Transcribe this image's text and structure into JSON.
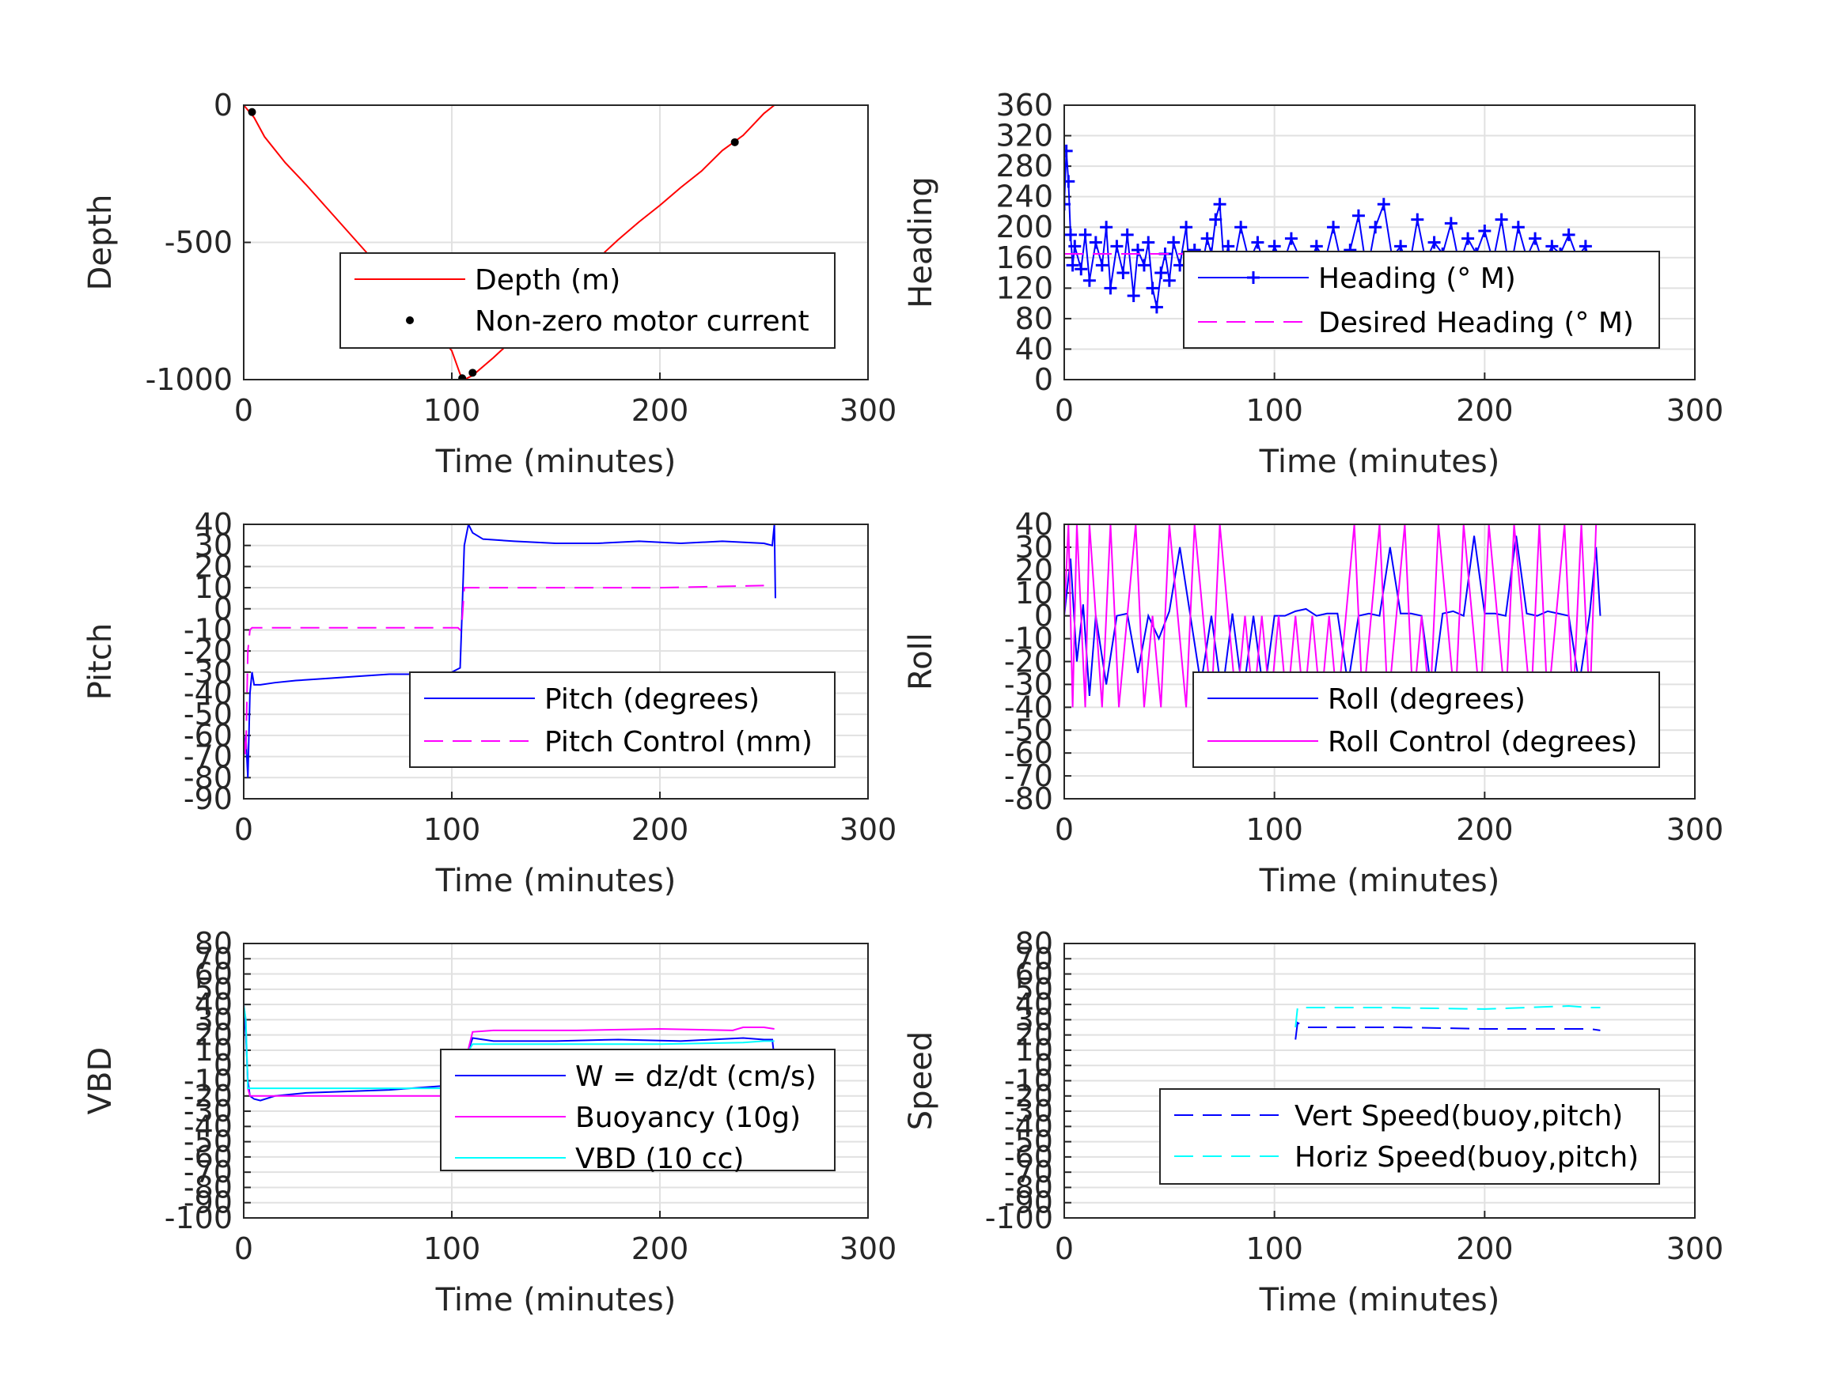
{
  "chart_data": [
    {
      "id": "depth",
      "type": "line",
      "xlabel": "Time (minutes)",
      "ylabel": "Depth",
      "xlim": [
        0,
        300
      ],
      "ylim": [
        -1000,
        0
      ],
      "xticks": [
        0,
        100,
        200,
        300
      ],
      "yticks": [
        0,
        -500,
        -1000
      ],
      "ytick_labels": [
        "0",
        "-500",
        "-1000"
      ],
      "grid": true,
      "legend_position": "lower-right",
      "series": [
        {
          "name": "Depth (m)",
          "style": "line",
          "color": "#ff0000",
          "x": [
            0,
            5,
            10,
            20,
            30,
            40,
            50,
            60,
            70,
            80,
            90,
            100,
            104,
            106,
            110,
            120,
            130,
            140,
            150,
            160,
            170,
            180,
            190,
            200,
            210,
            220,
            230,
            240,
            250,
            255
          ],
          "y": [
            0,
            -45,
            -115,
            -210,
            -290,
            -375,
            -460,
            -545,
            -630,
            -710,
            -800,
            -895,
            -980,
            -1000,
            -985,
            -920,
            -850,
            -775,
            -700,
            -630,
            -560,
            -490,
            -425,
            -365,
            -300,
            -240,
            -165,
            -110,
            -30,
            0
          ]
        },
        {
          "name": "Non-zero motor current",
          "style": "points",
          "color": "#000000",
          "x": [
            4,
            77,
            105,
            110,
            236
          ],
          "y": [
            -25,
            -780,
            -995,
            -975,
            -135
          ]
        }
      ]
    },
    {
      "id": "heading",
      "type": "line",
      "xlabel": "Time (minutes)",
      "ylabel": "Heading",
      "xlim": [
        0,
        300
      ],
      "ylim": [
        0,
        360
      ],
      "xticks": [
        0,
        100,
        200,
        300
      ],
      "yticks": [
        0,
        40,
        80,
        120,
        160,
        200,
        240,
        280,
        320,
        360
      ],
      "grid": true,
      "legend_position": "lower-right",
      "series": [
        {
          "name": "Heading (° M)",
          "style": "plus",
          "color": "#0000ff",
          "x": [
            0,
            1,
            2,
            3,
            4,
            5,
            8,
            10,
            12,
            15,
            18,
            20,
            22,
            25,
            28,
            30,
            33,
            35,
            38,
            40,
            42,
            44,
            46,
            48,
            50,
            52,
            55,
            58,
            60,
            62,
            65,
            68,
            70,
            72,
            74,
            76,
            78,
            80,
            84,
            88,
            92,
            96,
            100,
            104,
            108,
            112,
            116,
            120,
            124,
            128,
            132,
            136,
            140,
            144,
            148,
            152,
            156,
            160,
            164,
            168,
            172,
            176,
            180,
            184,
            188,
            192,
            196,
            200,
            204,
            208,
            212,
            216,
            220,
            224,
            228,
            232,
            236,
            240,
            244,
            248,
            252,
            254,
            255
          ],
          "y": [
            230,
            300,
            260,
            190,
            150,
            175,
            145,
            190,
            130,
            180,
            150,
            200,
            120,
            175,
            140,
            190,
            110,
            170,
            150,
            180,
            120,
            95,
            140,
            165,
            130,
            180,
            150,
            200,
            125,
            170,
            140,
            185,
            165,
            210,
            230,
            150,
            175,
            140,
            200,
            155,
            180,
            140,
            175,
            150,
            185,
            160,
            145,
            175,
            155,
            200,
            150,
            170,
            215,
            140,
            200,
            230,
            160,
            175,
            145,
            210,
            155,
            180,
            165,
            205,
            150,
            185,
            165,
            195,
            155,
            210,
            140,
            200,
            160,
            185,
            150,
            175,
            165,
            190,
            160,
            175,
            130,
            90,
            55
          ]
        },
        {
          "name": "Desired Heading (° M)",
          "style": "dashed",
          "color": "#ff00ff",
          "x": [
            0,
            255
          ],
          "y": [
            165,
            165
          ]
        }
      ]
    },
    {
      "id": "pitch",
      "type": "line",
      "xlabel": "Time (minutes)",
      "ylabel": "Pitch",
      "xlim": [
        0,
        300
      ],
      "ylim": [
        -90,
        40
      ],
      "xticks": [
        0,
        100,
        200,
        300
      ],
      "yticks": [
        40,
        30,
        20,
        10,
        0,
        -10,
        -20,
        -30,
        -40,
        -50,
        -60,
        -70,
        -80,
        -90
      ],
      "grid": true,
      "legend_position": "lower-right",
      "series": [
        {
          "name": "Pitch (degrees)",
          "style": "line",
          "color": "#0000ff",
          "x": [
            0,
            1,
            2,
            3,
            4,
            5,
            8,
            15,
            25,
            40,
            55,
            70,
            85,
            100,
            104,
            105,
            106,
            108,
            110,
            115,
            130,
            150,
            170,
            190,
            210,
            230,
            250,
            254,
            255,
            255.5
          ],
          "y": [
            -70,
            -60,
            -80,
            -40,
            -30,
            -36,
            -36,
            -35,
            -34,
            -33,
            -32,
            -31,
            -31,
            -30,
            -28,
            0,
            30,
            40,
            36,
            33,
            32,
            31,
            31,
            32,
            31,
            32,
            31,
            30,
            40,
            5
          ]
        },
        {
          "name": "Pitch Control (mm)",
          "style": "dashed",
          "color": "#ff00ff",
          "x": [
            0,
            1,
            2,
            3,
            4,
            5,
            20,
            50,
            80,
            103,
            104,
            105,
            106,
            110,
            150,
            200,
            250
          ],
          "y": [
            -60,
            -70,
            -20,
            -10,
            -9,
            -9,
            -9,
            -9,
            -9,
            -9,
            -10,
            -5,
            10,
            10,
            10,
            10,
            11
          ]
        }
      ]
    },
    {
      "id": "roll",
      "type": "line",
      "xlabel": "Time (minutes)",
      "ylabel": "Roll",
      "xlim": [
        0,
        300
      ],
      "ylim": [
        -80,
        40
      ],
      "xticks": [
        0,
        100,
        200,
        300
      ],
      "yticks": [
        40,
        30,
        20,
        10,
        0,
        -10,
        -20,
        -30,
        -40,
        -50,
        -60,
        -70,
        -80
      ],
      "grid": true,
      "legend_position": "lower-right",
      "series": [
        {
          "name": "Roll (degrees)",
          "style": "line",
          "color": "#0000ff",
          "x": [
            0,
            3,
            6,
            9,
            12,
            15,
            20,
            25,
            30,
            35,
            40,
            45,
            50,
            55,
            60,
            65,
            70,
            75,
            80,
            85,
            90,
            95,
            100,
            105,
            110,
            115,
            120,
            125,
            130,
            135,
            140,
            145,
            150,
            155,
            160,
            165,
            170,
            175,
            180,
            185,
            190,
            195,
            200,
            205,
            210,
            215,
            220,
            225,
            230,
            235,
            240,
            245,
            250,
            253,
            255
          ],
          "y": [
            0,
            25,
            -20,
            5,
            -35,
            0,
            -30,
            0,
            1,
            -25,
            0,
            -10,
            2,
            30,
            0,
            -30,
            0,
            -35,
            1,
            -35,
            0,
            -35,
            0,
            0,
            2,
            3,
            0,
            1,
            1,
            -30,
            0,
            1,
            0,
            30,
            1,
            1,
            0,
            -35,
            1,
            2,
            0,
            35,
            1,
            1,
            0,
            35,
            1,
            0,
            2,
            1,
            0,
            -30,
            1,
            30,
            0
          ]
        },
        {
          "name": "Roll Control (degrees)",
          "style": "line",
          "color": "#ff00ff",
          "x": [
            0,
            2,
            4,
            6,
            8,
            10,
            12,
            15,
            18,
            22,
            26,
            30,
            34,
            38,
            42,
            46,
            50,
            54,
            58,
            62,
            66,
            70,
            74,
            78,
            82,
            86,
            90,
            94,
            98,
            102,
            106,
            110,
            114,
            118,
            122,
            126,
            130,
            134,
            138,
            142,
            146,
            150,
            154,
            158,
            162,
            166,
            170,
            174,
            178,
            182,
            186,
            190,
            194,
            198,
            202,
            206,
            210,
            214,
            218,
            222,
            226,
            230,
            234,
            238,
            242,
            246,
            250,
            253
          ],
          "y": [
            0,
            40,
            -40,
            40,
            0,
            -40,
            40,
            0,
            -40,
            40,
            -40,
            0,
            40,
            -40,
            0,
            -40,
            40,
            0,
            -40,
            40,
            0,
            -40,
            40,
            0,
            -40,
            0,
            -40,
            0,
            -40,
            0,
            -40,
            0,
            -40,
            0,
            -40,
            0,
            -40,
            0,
            40,
            -40,
            0,
            40,
            -40,
            0,
            40,
            -40,
            0,
            -40,
            40,
            0,
            -40,
            40,
            0,
            -40,
            40,
            0,
            -40,
            40,
            0,
            -40,
            40,
            -40,
            0,
            40,
            -40,
            40,
            -40,
            40
          ]
        }
      ]
    },
    {
      "id": "vbd",
      "type": "line",
      "xlabel": "Time (minutes)",
      "ylabel": "VBD",
      "xlim": [
        0,
        300
      ],
      "ylim": [
        -100,
        80
      ],
      "xticks": [
        0,
        100,
        200,
        300
      ],
      "yticks": [
        80,
        70,
        60,
        50,
        40,
        30,
        20,
        10,
        0,
        -10,
        -20,
        -30,
        -40,
        -50,
        -60,
        -70,
        -80,
        -90,
        -100
      ],
      "grid": true,
      "legend_position": "lower-right",
      "series": [
        {
          "name": "W = dz/dt (cm/s)",
          "style": "line",
          "color": "#0000ff",
          "x": [
            0,
            1,
            2,
            3,
            5,
            8,
            15,
            30,
            50,
            70,
            90,
            100,
            104,
            106,
            108,
            110,
            120,
            150,
            180,
            210,
            240,
            250,
            254,
            255
          ],
          "y": [
            40,
            20,
            -10,
            -20,
            -22,
            -23,
            -20,
            -18,
            -17,
            -16,
            -14,
            -13,
            -12,
            0,
            10,
            18,
            16,
            16,
            17,
            16,
            18,
            17,
            17,
            5
          ]
        },
        {
          "name": "Buoyancy (10g)",
          "style": "line",
          "color": "#ff00ff",
          "x": [
            0,
            1,
            2,
            3,
            104,
            106,
            110,
            120,
            160,
            200,
            235,
            240,
            250,
            255
          ],
          "y": [
            40,
            30,
            -15,
            -20,
            -20,
            0,
            22,
            23,
            23,
            24,
            23,
            25,
            25,
            24
          ]
        },
        {
          "name": "VBD (10 cc)",
          "style": "line",
          "color": "#00ffff",
          "x": [
            0,
            1,
            2,
            3,
            104,
            106,
            110,
            150,
            200,
            240,
            250,
            255
          ],
          "y": [
            40,
            30,
            -15,
            -15,
            -15,
            5,
            14,
            14,
            14,
            15,
            16,
            16
          ]
        }
      ]
    },
    {
      "id": "speed",
      "type": "line",
      "xlabel": "Time (minutes)",
      "ylabel": "Speed",
      "xlim": [
        0,
        300
      ],
      "ylim": [
        -100,
        80
      ],
      "xticks": [
        0,
        100,
        200,
        300
      ],
      "yticks": [
        80,
        70,
        60,
        50,
        40,
        30,
        20,
        10,
        0,
        -10,
        -20,
        -30,
        -40,
        -50,
        -60,
        -70,
        -80,
        -90,
        -100
      ],
      "grid": true,
      "legend_position": "lower-right",
      "series": [
        {
          "name": "Vert Speed(buoy,pitch)",
          "style": "dashed",
          "color": "#0000ff",
          "x": [
            110,
            111,
            115,
            130,
            160,
            200,
            230,
            250,
            255
          ],
          "y": [
            17,
            28,
            25,
            25,
            25,
            24,
            24,
            24,
            23
          ]
        },
        {
          "name": "Horiz Speed(buoy,pitch)",
          "style": "dashed",
          "color": "#00ffff",
          "x": [
            110,
            111,
            115,
            150,
            200,
            240,
            250,
            255
          ],
          "y": [
            25,
            38,
            38,
            38,
            37,
            39,
            38,
            38
          ]
        }
      ]
    }
  ]
}
